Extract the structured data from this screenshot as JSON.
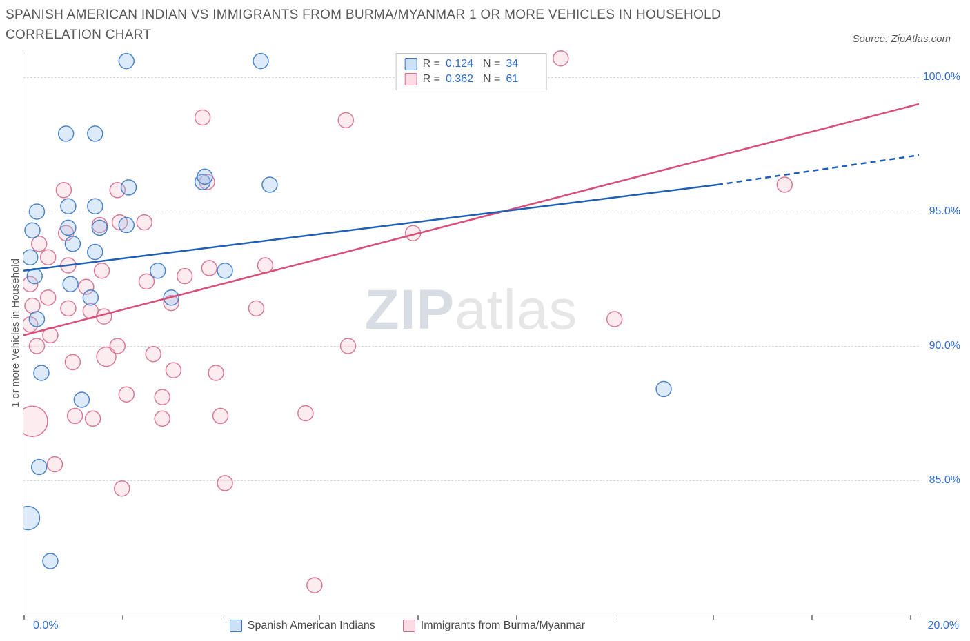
{
  "title": "SPANISH AMERICAN INDIAN VS IMMIGRANTS FROM BURMA/MYANMAR 1 OR MORE VEHICLES IN HOUSEHOLD CORRELATION CHART",
  "source": "Source: ZipAtlas.com",
  "watermark_zip": "ZIP",
  "watermark_atlas": "atlas",
  "chart": {
    "type": "scatter",
    "y_label": "1 or more Vehicles in Household",
    "xlim": [
      0,
      20
    ],
    "ylim": [
      80,
      101
    ],
    "x_ticks_pct": [
      0,
      11,
      22,
      33,
      44,
      55,
      66,
      77,
      88,
      99
    ],
    "y_ticks": [
      85,
      90,
      95,
      100
    ],
    "x_min_label": "0.0%",
    "x_max_label": "20.0%",
    "background_color": "#ffffff",
    "grid_color": "#d9d9d9",
    "axis_color": "#888888",
    "tick_label_color": "#2f6fd0",
    "label_color": "#5a5a5a",
    "label_fontsize": 15,
    "tick_fontsize": 16,
    "title_fontsize": 19,
    "marker_radius": 11,
    "marker_stroke_width": 1.5,
    "marker_opacity": 0.35,
    "line_width": 2.5
  },
  "series": {
    "blue": {
      "name": "Spanish American Indians",
      "fill": "#9ec4ee",
      "stroke": "#3a78c4",
      "line_color": "#1e5fb8",
      "stats": {
        "R": "0.124",
        "N": "34"
      },
      "trend": {
        "x1": 0,
        "y1": 92.8,
        "x2_solid": 15.5,
        "y2_solid": 96,
        "x2_dash": 20,
        "y2_dash": 97.1
      },
      "points": [
        {
          "x": 0.3,
          "y": 95.0,
          "r": 11
        },
        {
          "x": 0.2,
          "y": 94.3,
          "r": 11
        },
        {
          "x": 0.15,
          "y": 93.3,
          "r": 11
        },
        {
          "x": 0.25,
          "y": 92.6,
          "r": 11
        },
        {
          "x": 0.3,
          "y": 91.0,
          "r": 11
        },
        {
          "x": 0.4,
          "y": 89.0,
          "r": 11
        },
        {
          "x": 0.35,
          "y": 85.5,
          "r": 11
        },
        {
          "x": 0.1,
          "y": 83.6,
          "r": 17
        },
        {
          "x": 0.6,
          "y": 82.0,
          "r": 11
        },
        {
          "x": 0.95,
          "y": 97.9,
          "r": 11
        },
        {
          "x": 1.0,
          "y": 95.2,
          "r": 11
        },
        {
          "x": 1.0,
          "y": 94.4,
          "r": 11
        },
        {
          "x": 1.1,
          "y": 93.8,
          "r": 11
        },
        {
          "x": 1.05,
          "y": 92.3,
          "r": 11
        },
        {
          "x": 1.3,
          "y": 88.0,
          "r": 11
        },
        {
          "x": 1.6,
          "y": 97.9,
          "r": 11
        },
        {
          "x": 1.6,
          "y": 95.2,
          "r": 11
        },
        {
          "x": 1.7,
          "y": 94.4,
          "r": 11
        },
        {
          "x": 1.6,
          "y": 93.5,
          "r": 11
        },
        {
          "x": 1.5,
          "y": 91.8,
          "r": 11
        },
        {
          "x": 2.3,
          "y": 100.6,
          "r": 11
        },
        {
          "x": 2.35,
          "y": 95.9,
          "r": 11
        },
        {
          "x": 2.3,
          "y": 94.5,
          "r": 11
        },
        {
          "x": 3.0,
          "y": 92.8,
          "r": 11
        },
        {
          "x": 3.3,
          "y": 91.8,
          "r": 11
        },
        {
          "x": 4.0,
          "y": 96.1,
          "r": 11
        },
        {
          "x": 4.05,
          "y": 96.3,
          "r": 11
        },
        {
          "x": 4.5,
          "y": 92.8,
          "r": 11
        },
        {
          "x": 5.3,
          "y": 100.6,
          "r": 11
        },
        {
          "x": 5.5,
          "y": 96.0,
          "r": 11
        },
        {
          "x": 14.3,
          "y": 88.4,
          "r": 11
        }
      ]
    },
    "pink": {
      "name": "Immigrants from Burma/Myanmar",
      "fill": "#f6c6d1",
      "stroke": "#d66a8a",
      "line_color": "#d94d78",
      "stats": {
        "R": "0.362",
        "N": "61"
      },
      "trend": {
        "x1": 0,
        "y1": 90.4,
        "x2_solid": 20,
        "y2_solid": 99.0
      },
      "points": [
        {
          "x": 0.15,
          "y": 92.3,
          "r": 11
        },
        {
          "x": 0.2,
          "y": 91.5,
          "r": 11
        },
        {
          "x": 0.15,
          "y": 90.8,
          "r": 11
        },
        {
          "x": 0.35,
          "y": 93.8,
          "r": 11
        },
        {
          "x": 0.3,
          "y": 90.0,
          "r": 11
        },
        {
          "x": 0.2,
          "y": 87.2,
          "r": 22
        },
        {
          "x": 0.55,
          "y": 93.3,
          "r": 11
        },
        {
          "x": 0.55,
          "y": 91.8,
          "r": 11
        },
        {
          "x": 0.6,
          "y": 90.4,
          "r": 11
        },
        {
          "x": 0.7,
          "y": 85.6,
          "r": 11
        },
        {
          "x": 0.9,
          "y": 95.8,
          "r": 11
        },
        {
          "x": 0.95,
          "y": 94.2,
          "r": 11
        },
        {
          "x": 1.0,
          "y": 93.0,
          "r": 11
        },
        {
          "x": 1.0,
          "y": 91.4,
          "r": 11
        },
        {
          "x": 1.1,
          "y": 89.4,
          "r": 11
        },
        {
          "x": 1.15,
          "y": 87.4,
          "r": 11
        },
        {
          "x": 1.4,
          "y": 92.2,
          "r": 11
        },
        {
          "x": 1.5,
          "y": 91.3,
          "r": 11
        },
        {
          "x": 1.55,
          "y": 87.3,
          "r": 11
        },
        {
          "x": 1.7,
          "y": 94.5,
          "r": 11
        },
        {
          "x": 1.75,
          "y": 92.8,
          "r": 11
        },
        {
          "x": 1.8,
          "y": 91.1,
          "r": 11
        },
        {
          "x": 1.85,
          "y": 89.6,
          "r": 14
        },
        {
          "x": 2.1,
          "y": 95.8,
          "r": 11
        },
        {
          "x": 2.15,
          "y": 94.6,
          "r": 11
        },
        {
          "x": 2.1,
          "y": 90.0,
          "r": 11
        },
        {
          "x": 2.3,
          "y": 88.2,
          "r": 11
        },
        {
          "x": 2.2,
          "y": 84.7,
          "r": 11
        },
        {
          "x": 2.7,
          "y": 94.6,
          "r": 11
        },
        {
          "x": 2.75,
          "y": 92.4,
          "r": 11
        },
        {
          "x": 2.9,
          "y": 89.7,
          "r": 11
        },
        {
          "x": 3.1,
          "y": 88.1,
          "r": 11
        },
        {
          "x": 3.1,
          "y": 87.3,
          "r": 11
        },
        {
          "x": 3.3,
          "y": 91.6,
          "r": 11
        },
        {
          "x": 3.35,
          "y": 89.1,
          "r": 11
        },
        {
          "x": 3.6,
          "y": 92.6,
          "r": 11
        },
        {
          "x": 4.0,
          "y": 98.5,
          "r": 11
        },
        {
          "x": 4.1,
          "y": 96.1,
          "r": 11
        },
        {
          "x": 4.15,
          "y": 92.9,
          "r": 11
        },
        {
          "x": 4.3,
          "y": 89.0,
          "r": 11
        },
        {
          "x": 4.4,
          "y": 87.4,
          "r": 11
        },
        {
          "x": 4.5,
          "y": 84.9,
          "r": 11
        },
        {
          "x": 5.2,
          "y": 91.4,
          "r": 11
        },
        {
          "x": 5.4,
          "y": 93.0,
          "r": 11
        },
        {
          "x": 6.3,
          "y": 87.5,
          "r": 11
        },
        {
          "x": 6.5,
          "y": 81.1,
          "r": 11
        },
        {
          "x": 7.2,
          "y": 98.4,
          "r": 11
        },
        {
          "x": 7.25,
          "y": 90.0,
          "r": 11
        },
        {
          "x": 8.7,
          "y": 94.2,
          "r": 11
        },
        {
          "x": 12.0,
          "y": 100.7,
          "r": 11
        },
        {
          "x": 13.2,
          "y": 91.0,
          "r": 11
        },
        {
          "x": 17.0,
          "y": 96.0,
          "r": 11
        }
      ]
    }
  },
  "stats_box": {
    "r_label": "R =",
    "n_label": "N ="
  },
  "legend": {
    "blue_label": "Spanish American Indians",
    "pink_label": "Immigrants from Burma/Myanmar"
  }
}
